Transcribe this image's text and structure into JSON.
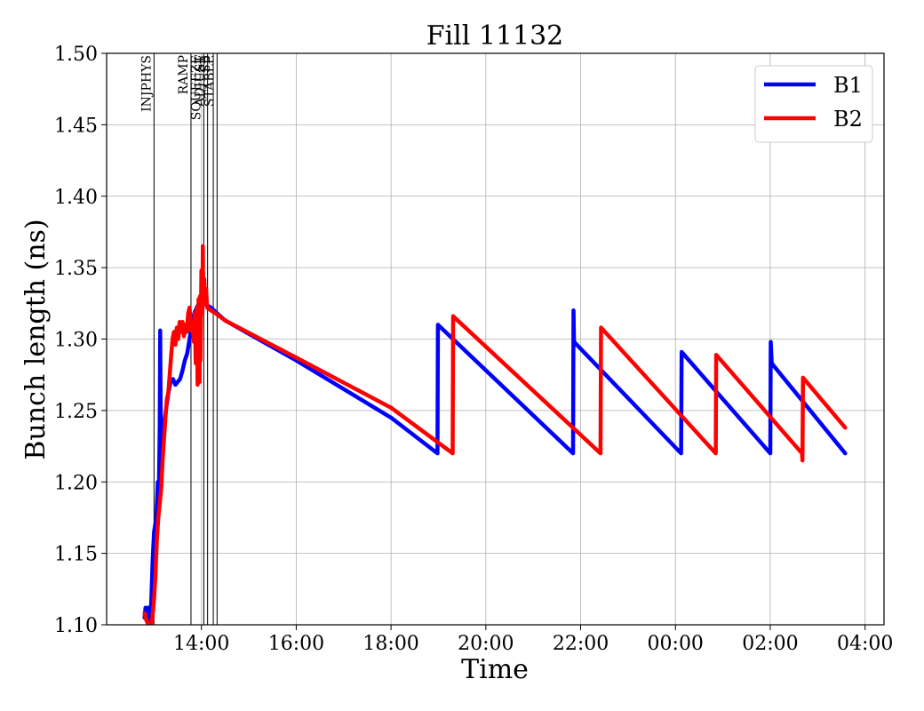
{
  "chart_data": {
    "type": "line",
    "title": "Fill 11132",
    "xlabel": "Time",
    "ylabel": "Bunch length (ns)",
    "x_unit": "hours (clock time, continuing past midnight)",
    "xlim": [
      12.0,
      28.4
    ],
    "ylim": [
      1.1,
      1.5
    ],
    "x_ticks": [
      {
        "value": 14,
        "label": "14:00"
      },
      {
        "value": 16,
        "label": "16:00"
      },
      {
        "value": 18,
        "label": "18:00"
      },
      {
        "value": 20,
        "label": "20:00"
      },
      {
        "value": 22,
        "label": "22:00"
      },
      {
        "value": 24,
        "label": "00:00"
      },
      {
        "value": 26,
        "label": "02:00"
      },
      {
        "value": 28,
        "label": "04:00"
      }
    ],
    "y_ticks": [
      {
        "value": 1.1,
        "label": "1.10"
      },
      {
        "value": 1.15,
        "label": "1.15"
      },
      {
        "value": 1.2,
        "label": "1.20"
      },
      {
        "value": 1.25,
        "label": "1.25"
      },
      {
        "value": 1.3,
        "label": "1.30"
      },
      {
        "value": 1.35,
        "label": "1.35"
      },
      {
        "value": 1.4,
        "label": "1.40"
      },
      {
        "value": 1.45,
        "label": "1.45"
      },
      {
        "value": 1.5,
        "label": "1.50"
      }
    ],
    "grid": true,
    "legend_position": "top-right",
    "phases": [
      {
        "label": "INJPHYS",
        "x": 13.0
      },
      {
        "label": "RAMP",
        "x": 13.78
      },
      {
        "label": "SQUEEZE",
        "x": 14.05
      },
      {
        "label": "ADJUST",
        "x": 14.13
      },
      {
        "label": "SB",
        "x": 14.25
      },
      {
        "label": "STABLE",
        "x": 14.33
      }
    ],
    "series": [
      {
        "name": "B1",
        "color": "#0000ff",
        "points": [
          [
            12.8,
            1.105
          ],
          [
            12.82,
            1.112
          ],
          [
            12.84,
            1.108
          ],
          [
            12.88,
            1.112
          ],
          [
            12.9,
            1.1
          ],
          [
            12.94,
            1.115
          ],
          [
            12.97,
            1.145
          ],
          [
            13.0,
            1.165
          ],
          [
            13.05,
            1.175
          ],
          [
            13.08,
            1.2
          ],
          [
            13.1,
            1.185
          ],
          [
            13.12,
            1.24
          ],
          [
            13.13,
            1.306
          ],
          [
            13.14,
            1.25
          ],
          [
            13.17,
            1.225
          ],
          [
            13.2,
            1.235
          ],
          [
            13.25,
            1.25
          ],
          [
            13.3,
            1.262
          ],
          [
            13.35,
            1.27
          ],
          [
            13.4,
            1.272
          ],
          [
            13.45,
            1.268
          ],
          [
            13.5,
            1.27
          ],
          [
            13.55,
            1.272
          ],
          [
            13.6,
            1.278
          ],
          [
            13.65,
            1.285
          ],
          [
            13.7,
            1.29
          ],
          [
            13.75,
            1.3
          ],
          [
            13.8,
            1.31
          ],
          [
            13.85,
            1.318
          ],
          [
            13.9,
            1.322
          ],
          [
            13.95,
            1.325
          ],
          [
            14.0,
            1.326
          ],
          [
            14.05,
            1.325
          ],
          [
            14.1,
            1.324
          ],
          [
            14.2,
            1.322
          ],
          [
            14.3,
            1.319
          ],
          [
            14.5,
            1.313
          ],
          [
            16.0,
            1.285
          ],
          [
            18.0,
            1.245
          ],
          [
            18.98,
            1.22
          ],
          [
            18.99,
            1.31
          ],
          [
            21.84,
            1.22
          ],
          [
            21.85,
            1.32
          ],
          [
            21.86,
            1.298
          ],
          [
            24.12,
            1.22
          ],
          [
            24.13,
            1.291
          ],
          [
            26.0,
            1.22
          ],
          [
            26.01,
            1.298
          ],
          [
            26.03,
            1.283
          ],
          [
            27.58,
            1.22
          ]
        ]
      },
      {
        "name": "B2",
        "color": "#ff0000",
        "points": [
          [
            12.8,
            1.108
          ],
          [
            12.84,
            1.103
          ],
          [
            12.88,
            1.1
          ],
          [
            12.92,
            1.098
          ],
          [
            12.96,
            1.103
          ],
          [
            13.0,
            1.118
          ],
          [
            13.03,
            1.135
          ],
          [
            13.06,
            1.16
          ],
          [
            13.09,
            1.175
          ],
          [
            13.12,
            1.185
          ],
          [
            13.15,
            1.195
          ],
          [
            13.18,
            1.215
          ],
          [
            13.21,
            1.23
          ],
          [
            13.24,
            1.245
          ],
          [
            13.27,
            1.258
          ],
          [
            13.3,
            1.262
          ],
          [
            13.33,
            1.275
          ],
          [
            13.36,
            1.288
          ],
          [
            13.39,
            1.3
          ],
          [
            13.42,
            1.305
          ],
          [
            13.45,
            1.296
          ],
          [
            13.48,
            1.308
          ],
          [
            13.51,
            1.3
          ],
          [
            13.54,
            1.312
          ],
          [
            13.57,
            1.305
          ],
          [
            13.6,
            1.312
          ],
          [
            13.63,
            1.302
          ],
          [
            13.66,
            1.31
          ],
          [
            13.69,
            1.305
          ],
          [
            13.72,
            1.318
          ],
          [
            13.75,
            1.322
          ],
          [
            13.78,
            1.306
          ],
          [
            13.81,
            1.312
          ],
          [
            13.84,
            1.298
          ],
          [
            13.86,
            1.318
          ],
          [
            13.88,
            1.283
          ],
          [
            13.9,
            1.322
          ],
          [
            13.92,
            1.268
          ],
          [
            13.94,
            1.328
          ],
          [
            13.96,
            1.27
          ],
          [
            13.97,
            1.33
          ],
          [
            13.98,
            1.285
          ],
          [
            14.0,
            1.348
          ],
          [
            14.02,
            1.318
          ],
          [
            14.03,
            1.365
          ],
          [
            14.04,
            1.33
          ],
          [
            14.06,
            1.342
          ],
          [
            14.08,
            1.325
          ],
          [
            14.1,
            1.335
          ],
          [
            14.12,
            1.322
          ],
          [
            14.2,
            1.32
          ],
          [
            14.3,
            1.318
          ],
          [
            14.5,
            1.313
          ],
          [
            16.0,
            1.287
          ],
          [
            18.0,
            1.252
          ],
          [
            19.3,
            1.22
          ],
          [
            19.31,
            1.316
          ],
          [
            22.42,
            1.22
          ],
          [
            22.43,
            1.308
          ],
          [
            24.85,
            1.22
          ],
          [
            24.86,
            1.289
          ],
          [
            26.67,
            1.22
          ],
          [
            26.68,
            1.215
          ],
          [
            26.69,
            1.273
          ],
          [
            27.58,
            1.238
          ]
        ]
      }
    ]
  }
}
